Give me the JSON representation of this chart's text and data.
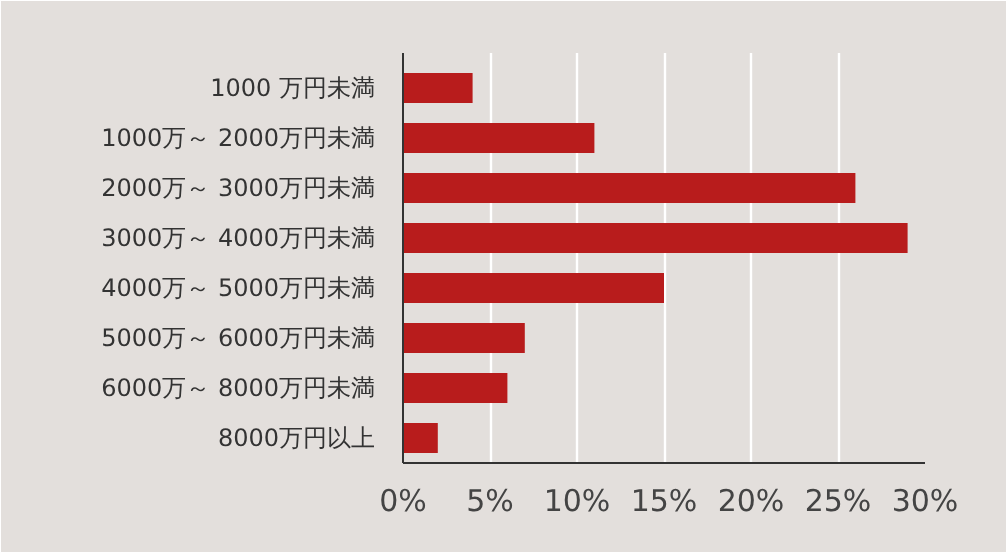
{
  "chart_data": {
    "type": "bar",
    "orientation": "horizontal",
    "categories": [
      "1000 万円未満",
      "1000万～ 2000万円未満",
      "2000万～ 3000万円未満",
      "3000万～ 4000万円未満",
      "4000万～ 5000万円未満",
      "5000万～ 6000万円未満",
      "6000万～ 8000万円未満",
      "8000万円以上"
    ],
    "series": [
      {
        "color": "#b81c1c",
        "values": [
          4,
          11,
          26,
          29,
          15,
          7,
          6,
          2
        ]
      }
    ],
    "xlim": [
      0,
      30
    ],
    "xticks": [
      {
        "value": 0,
        "label": "0%"
      },
      {
        "value": 5,
        "label": "5%"
      },
      {
        "value": 10,
        "label": "10%"
      },
      {
        "value": 15,
        "label": "15%"
      },
      {
        "value": 20,
        "label": "20%"
      },
      {
        "value": 25,
        "label": "25%"
      },
      {
        "value": 30,
        "label": "30%"
      }
    ],
    "grid": "x"
  }
}
